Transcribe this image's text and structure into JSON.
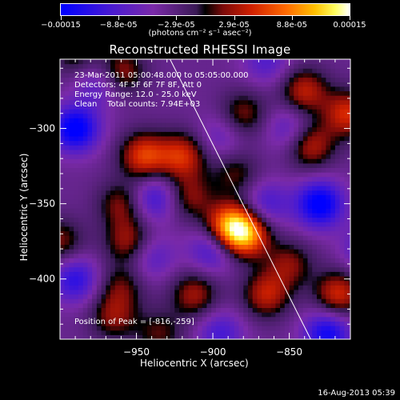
{
  "colorbar": {
    "ticks": [
      "-0.00015",
      "-8.8e-05",
      "-2.9e-05",
      "2.9e-05",
      "8.8e-05",
      "0.00015"
    ],
    "units": "(photons cm⁻² s⁻¹ asec⁻²)"
  },
  "info": {
    "line1": "23-Mar-2011 05:00:48.000 to 05:05:00.000",
    "line2": "Detectors: 4F 5F 6F 7F 8F, Att 0",
    "line3": "Energy Range: 12.0 - 25.0 keV",
    "line4": "Clean    Total counts: 7.94E+03",
    "peak": "Position of Peak = [-816,-259]"
  },
  "timestamp": "16-Aug-2013 05:39",
  "chart_data": {
    "type": "heatmap",
    "title": "Reconstructed RHESSI Image",
    "xlabel": "Heliocentric X (arcsec)",
    "ylabel": "Heliocentric Y (arcsec)",
    "xlim": [
      -1000,
      -810
    ],
    "ylim": [
      -440,
      -254
    ],
    "xticks": [
      -950,
      -900,
      -850
    ],
    "yticks": [
      -300,
      -350,
      -400
    ],
    "color_range": [
      -0.00015,
      0.00015
    ],
    "colormap": "blue-purple-black-red-yellow-white",
    "limb_line": [
      [
        -928,
        -254
      ],
      [
        -836,
        -440
      ]
    ],
    "peak_position": [
      -816,
      -259
    ],
    "blobs": [
      {
        "x": -889,
        "y": -365,
        "v": 0.00013
      },
      {
        "x": -878,
        "y": -370,
        "v": 0.00012
      },
      {
        "x": -945,
        "y": -318,
        "v": 0.0001
      },
      {
        "x": -920,
        "y": -318,
        "v": 9e-05
      },
      {
        "x": -812,
        "y": -290,
        "v": 9e-05
      },
      {
        "x": -840,
        "y": -275,
        "v": 8e-05
      },
      {
        "x": -836,
        "y": -311,
        "v": 8e-05
      },
      {
        "x": -955,
        "y": -375,
        "v": 7e-05
      },
      {
        "x": -960,
        "y": -350,
        "v": 6e-05
      },
      {
        "x": -915,
        "y": -345,
        "v": 6e-05
      },
      {
        "x": -912,
        "y": -410,
        "v": 7e-05
      },
      {
        "x": -850,
        "y": -390,
        "v": 6e-05
      },
      {
        "x": -818,
        "y": -410,
        "v": 9e-05
      },
      {
        "x": -865,
        "y": -410,
        "v": 8e-05
      },
      {
        "x": -960,
        "y": -262,
        "v": 7e-05
      },
      {
        "x": -990,
        "y": -250,
        "v": 5e-05
      },
      {
        "x": -1000,
        "y": -375,
        "v": 6e-05
      },
      {
        "x": -965,
        "y": -425,
        "v": 6e-05
      },
      {
        "x": -935,
        "y": -436,
        "v": 5e-05
      },
      {
        "x": -880,
        "y": -290,
        "v": 6e-05
      },
      {
        "x": -885,
        "y": -330,
        "v": 5e-05
      },
      {
        "x": -960,
        "y": -405,
        "v": 5e-05
      },
      {
        "x": -990,
        "y": -300,
        "v": -0.00012
      },
      {
        "x": -830,
        "y": -350,
        "v": -0.00012
      },
      {
        "x": -825,
        "y": -436,
        "v": -0.0001
      },
      {
        "x": -900,
        "y": -380,
        "v": -7e-05
      },
      {
        "x": -938,
        "y": -346,
        "v": -7e-05
      },
      {
        "x": -865,
        "y": -350,
        "v": -6e-05
      },
      {
        "x": -990,
        "y": -400,
        "v": -8e-05
      },
      {
        "x": -895,
        "y": -436,
        "v": -6e-05
      },
      {
        "x": -865,
        "y": -255,
        "v": -5e-05
      },
      {
        "x": -975,
        "y": -270,
        "v": -5e-05
      },
      {
        "x": -800,
        "y": -380,
        "v": -6e-05
      },
      {
        "x": -895,
        "y": -305,
        "v": -4e-05
      },
      {
        "x": -940,
        "y": -385,
        "v": -5e-05
      },
      {
        "x": -850,
        "y": -300,
        "v": -5e-05
      }
    ]
  }
}
